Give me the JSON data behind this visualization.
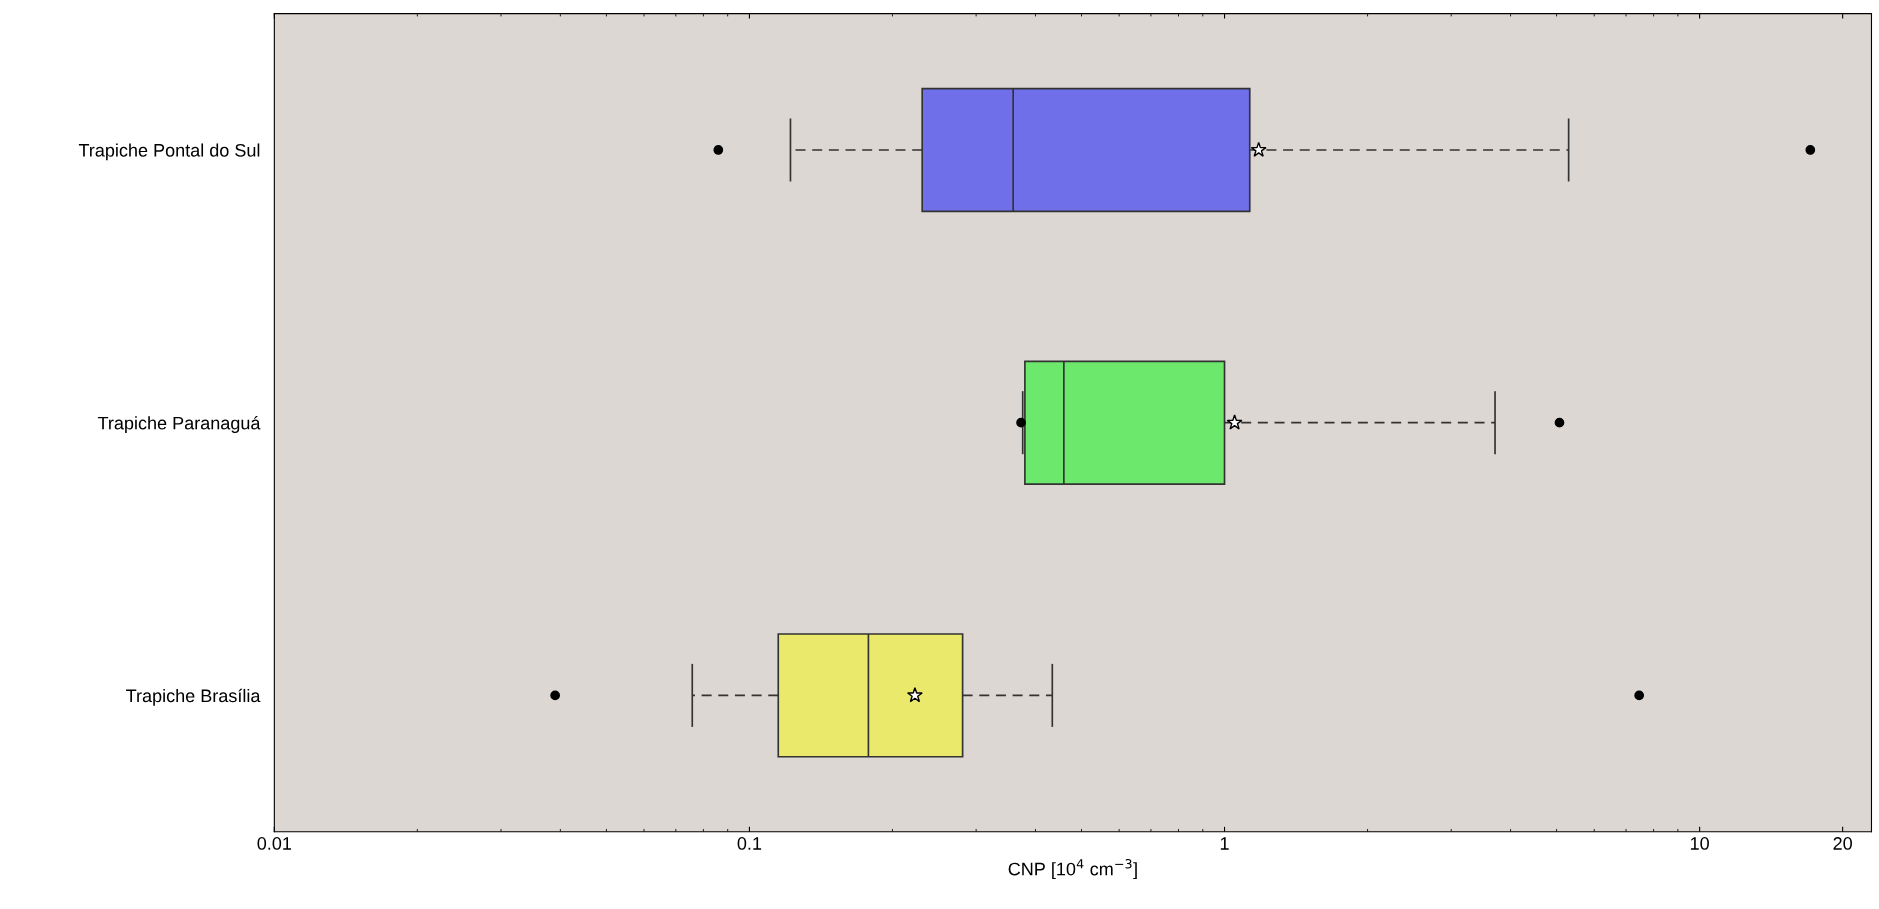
{
  "chart_data": {
    "type": "box",
    "orientation": "horizontal",
    "xlabel": "CNP [10$^{4}$ cm$^{−3}$]",
    "categories": [
      "Trapiche Pontal do Sul",
      "Trapiche Paranaguá",
      "Trapiche Brasília"
    ],
    "colors": [
      "#6f6fea",
      "#6ce86c",
      "#ebe96b"
    ],
    "boxes": [
      {
        "low": 0.122,
        "q1": 0.231,
        "median": 0.359,
        "q3": 1.13,
        "high": 5.3,
        "mean": 1.18,
        "outliers": [
          0.086,
          17.1
        ]
      },
      {
        "low": 0.376,
        "q1": 0.38,
        "median": 0.459,
        "q3": 1.0,
        "high": 3.71,
        "mean": 1.05,
        "outliers": [
          0.373,
          5.07
        ]
      },
      {
        "low": 0.0758,
        "q1": 0.115,
        "median": 0.178,
        "q3": 0.281,
        "high": 0.434,
        "mean": 0.223,
        "outliers": [
          0.039,
          7.46
        ]
      }
    ],
    "log": "x",
    "xlim": [
      0.01,
      23
    ],
    "xticks": [
      0.01,
      0.1,
      1,
      10,
      20
    ],
    "grid": false,
    "legend": false
  }
}
